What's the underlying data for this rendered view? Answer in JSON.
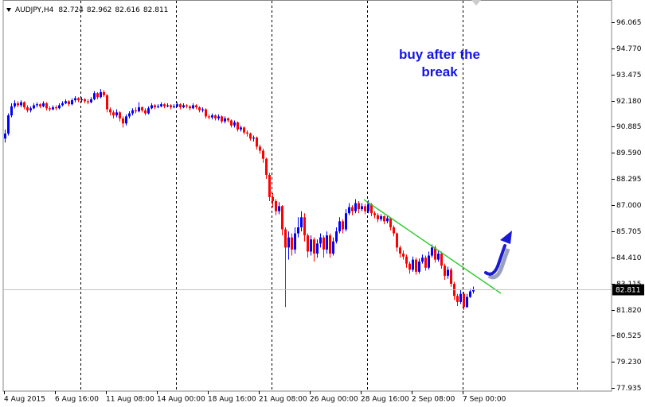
{
  "chart_data": {
    "type": "candlestick",
    "title": "AUDJPY,H4",
    "annotation": "buy after the break",
    "categories": [
      "4 Aug 2015",
      null,
      null,
      null,
      null,
      null,
      null,
      null,
      null,
      null,
      null,
      null,
      null,
      null,
      null,
      null,
      "6 Aug 16:00",
      null,
      null,
      null,
      null,
      null,
      null,
      null,
      null,
      null,
      null,
      null,
      null,
      null,
      null,
      null,
      "11 Aug 08:00",
      null,
      null,
      null,
      null,
      null,
      null,
      null,
      null,
      null,
      null,
      null,
      null,
      null,
      null,
      null,
      "14 Aug 00:00",
      null,
      null,
      null,
      null,
      null,
      null,
      null,
      null,
      null,
      null,
      null,
      null,
      null,
      null,
      null,
      "18 Aug 16:00",
      null,
      null,
      null,
      null,
      null,
      null,
      null,
      null,
      null,
      null,
      null,
      null,
      null,
      null,
      null,
      "21 Aug 08:00",
      null,
      null,
      null,
      null,
      null,
      null,
      null,
      null,
      null,
      null,
      null,
      null,
      null,
      null,
      null,
      "26 Aug 00:00",
      null,
      null,
      null,
      null,
      null,
      null,
      null,
      null,
      null,
      null,
      null,
      null,
      null,
      null,
      null,
      "28 Aug 16:00",
      null,
      null,
      null,
      null,
      null,
      null,
      null,
      null,
      null,
      null,
      null,
      null,
      null,
      null,
      null,
      "2 Sep 08:00",
      null,
      null,
      null,
      null,
      null,
      null,
      null,
      null,
      null,
      null,
      null,
      null,
      null,
      null,
      null,
      "7 Sep 00:00",
      null,
      null,
      null
    ],
    "open": [
      90.3,
      90.55,
      91.45,
      91.9,
      92.05,
      91.95,
      92.1,
      91.85,
      91.7,
      91.8,
      91.95,
      92,
      91.9,
      92.05,
      91.8,
      91.75,
      91.85,
      91.8,
      91.95,
      92.05,
      92.15,
      92,
      92.2,
      92.3,
      92.2,
      92.25,
      92.15,
      92.1,
      92.25,
      92.55,
      92.35,
      92.6,
      92.45,
      91.75,
      91.6,
      91.45,
      91.6,
      91.3,
      91.05,
      91.4,
      91.55,
      91.7,
      91.65,
      91.85,
      91.7,
      91.55,
      91.8,
      91.95,
      91.85,
      91.9,
      92,
      91.9,
      91.95,
      91.85,
      91.9,
      92,
      91.85,
      91.95,
      91.9,
      91.8,
      91.95,
      91.85,
      91.7,
      91.75,
      91.4,
      91.35,
      91.45,
      91.3,
      91.4,
      91.15,
      91.3,
      91.2,
      90.95,
      91.1,
      90.75,
      90.85,
      90.6,
      90.55,
      90.3,
      90.35,
      89.9,
      89.7,
      89.3,
      88.5,
      87.4,
      87.2,
      86.7,
      86.95,
      85.8,
      84.9,
      85.4,
      84.8,
      85.6,
      85.9,
      86.4,
      85.5,
      84.7,
      85.3,
      84.6,
      85.1,
      85.4,
      84.8,
      85.5,
      84.6,
      85.2,
      85.7,
      86.2,
      85.8,
      86.6,
      86.9,
      86.7,
      87.1,
      86.8,
      86.95,
      86.7,
      87.05,
      86.6,
      86.5,
      86.3,
      86.45,
      86.2,
      86.35,
      85.9,
      85.6,
      84.9,
      84.6,
      84.45,
      84.1,
      83.8,
      84.3,
      83.7,
      84.2,
      84.4,
      83.9,
      84.5,
      84.9,
      84.3,
      84.6,
      84,
      83.5,
      83.8,
      83.1,
      82.5,
      82.2,
      82.6,
      81.95,
      82.45,
      82.724
    ],
    "high": [
      90.75,
      91.55,
      92.05,
      92.2,
      92.15,
      92.2,
      92.15,
      91.95,
      91.9,
      92.05,
      92.1,
      92.05,
      92.15,
      92.1,
      91.9,
      91.95,
      91.95,
      92.05,
      92.15,
      92.25,
      92.2,
      92.3,
      92.4,
      92.35,
      92.35,
      92.3,
      92.25,
      92.35,
      92.65,
      92.6,
      92.75,
      92.7,
      92.5,
      91.85,
      91.7,
      91.75,
      91.65,
      91.4,
      91.5,
      91.65,
      91.8,
      91.85,
      92.1,
      91.9,
      91.8,
      91.9,
      92.05,
      92,
      92,
      92.1,
      92.05,
      92.05,
      92,
      92,
      92.1,
      92.05,
      92.05,
      92,
      91.95,
      92.05,
      92,
      91.9,
      91.85,
      91.8,
      91.5,
      91.55,
      91.5,
      91.5,
      91.45,
      91.4,
      91.35,
      91.25,
      91.2,
      91.15,
      90.95,
      90.9,
      90.7,
      90.6,
      90.45,
      90.4,
      90,
      89.8,
      89.35,
      88.6,
      87.6,
      87.3,
      87.15,
      87,
      85.9,
      85.7,
      85.6,
      85.9,
      86.4,
      86.7,
      86.6,
      85.6,
      85.5,
      85.4,
      85.3,
      85.6,
      85.5,
      85.7,
      85.6,
      85.4,
      85.9,
      86.4,
      86.3,
      86.8,
      87.1,
      87,
      87.3,
      87.2,
      87.1,
      87.05,
      87.25,
      87.1,
      86.7,
      86.6,
      86.55,
      86.5,
      86.45,
      86.4,
      86,
      85.65,
      85,
      84.75,
      84.55,
      84.2,
      84.45,
      84.4,
      84.35,
      84.55,
      84.5,
      84.7,
      85.05,
      85,
      84.75,
      84.7,
      84.1,
      83.95,
      83.9,
      83.2,
      82.6,
      82.8,
      82.7,
      82.6,
      82.85,
      82.962
    ],
    "low": [
      90.1,
      90.45,
      91.35,
      91.8,
      91.85,
      91.85,
      91.75,
      91.6,
      91.6,
      91.75,
      91.85,
      91.8,
      91.85,
      91.7,
      91.65,
      91.7,
      91.7,
      91.75,
      91.9,
      92,
      91.9,
      91.95,
      92.1,
      92.1,
      92.1,
      92.05,
      92,
      92.05,
      92.2,
      92.25,
      92.3,
      92.35,
      91.6,
      91.45,
      91.3,
      91.35,
      91.15,
      90.85,
      90.95,
      91.3,
      91.45,
      91.55,
      91.6,
      91.6,
      91.45,
      91.5,
      91.75,
      91.75,
      91.8,
      91.85,
      91.8,
      91.85,
      91.75,
      91.8,
      91.85,
      91.75,
      91.8,
      91.8,
      91.7,
      91.75,
      91.75,
      91.6,
      91.6,
      91.3,
      91.25,
      91.25,
      91.2,
      91.2,
      91.05,
      91.05,
      91.1,
      90.85,
      90.85,
      90.65,
      90.65,
      90.5,
      90.4,
      90.2,
      90.15,
      89.75,
      89.55,
      89.1,
      88.3,
      87.2,
      86.9,
      86.5,
      86.55,
      85.5,
      81.95,
      84.3,
      84.5,
      84.6,
      85.4,
      85.7,
      85.2,
      84.4,
      84.5,
      84.2,
      84.4,
      84.9,
      84.4,
      84.6,
      84.4,
      84.5,
      85.1,
      85.6,
      85.6,
      85.7,
      86.5,
      86.5,
      86.6,
      86.6,
      86.7,
      86.55,
      86.6,
      86.45,
      86.35,
      86.15,
      86.2,
      86.05,
      86.1,
      85.75,
      85.45,
      84.7,
      84.4,
      84.3,
      83.9,
      83.6,
      83.7,
      83.55,
      83.6,
      84.1,
      83.75,
      83.8,
      84.4,
      84.15,
      84.2,
      83.85,
      83.3,
      83.35,
      82.95,
      82.3,
      82,
      82.1,
      81.8,
      81.9,
      82.4,
      82.616
    ],
    "close": [
      90.55,
      91.45,
      91.9,
      92.05,
      91.95,
      92.1,
      91.85,
      91.7,
      91.8,
      91.95,
      92,
      91.9,
      92.05,
      91.8,
      91.75,
      91.85,
      91.8,
      91.95,
      92.05,
      92.15,
      92,
      92.2,
      92.3,
      92.2,
      92.25,
      92.15,
      92.1,
      92.25,
      92.55,
      92.35,
      92.6,
      92.45,
      91.75,
      91.6,
      91.45,
      91.6,
      91.3,
      91.05,
      91.4,
      91.55,
      91.7,
      91.65,
      91.85,
      91.7,
      91.55,
      91.8,
      91.95,
      91.85,
      91.9,
      92,
      91.9,
      91.95,
      91.85,
      91.9,
      92,
      91.85,
      91.95,
      91.9,
      91.8,
      91.95,
      91.85,
      91.7,
      91.75,
      91.4,
      91.35,
      91.45,
      91.3,
      91.4,
      91.15,
      91.3,
      91.2,
      90.95,
      91.1,
      90.75,
      90.85,
      90.6,
      90.55,
      90.3,
      90.35,
      89.9,
      89.7,
      89.3,
      88.5,
      87.4,
      87.2,
      86.7,
      86.95,
      85.8,
      84.9,
      85.4,
      84.8,
      85.6,
      85.9,
      86.4,
      85.5,
      84.7,
      85.3,
      84.6,
      85.1,
      85.4,
      84.8,
      85.5,
      84.6,
      85.2,
      85.7,
      86.2,
      85.8,
      86.6,
      86.9,
      86.7,
      87.1,
      86.8,
      86.95,
      86.7,
      87.05,
      86.6,
      86.5,
      86.3,
      86.45,
      86.2,
      86.35,
      85.9,
      85.6,
      84.9,
      84.6,
      84.45,
      84.1,
      83.8,
      84.3,
      83.7,
      84.2,
      84.4,
      83.9,
      84.5,
      84.9,
      84.3,
      84.6,
      84,
      83.5,
      83.8,
      83.1,
      82.5,
      82.2,
      82.6,
      81.95,
      82.45,
      82.724,
      82.811
    ],
    "up_color": "#0000ff",
    "down_color": "#ff0000",
    "ylim": [
      77.783,
      97.011
    ],
    "yticks": [
      77.935,
      {
        "value": 79.23,
        "label": "79.230"
      },
      80.525,
      {
        "value": 81.82,
        "label": "81.820"
      },
      83.115,
      {
        "value": 84.41,
        "label": "84.410"
      },
      85.705,
      {
        "value": 87,
        "label": "87.000"
      },
      88.295,
      {
        "value": 89.59,
        "label": "89.590"
      },
      90.885,
      {
        "value": 92.18,
        "label": "92.180"
      },
      93.475,
      {
        "value": 94.77,
        "label": "94.770"
      },
      96.065
    ],
    "grid": false
  }
}
